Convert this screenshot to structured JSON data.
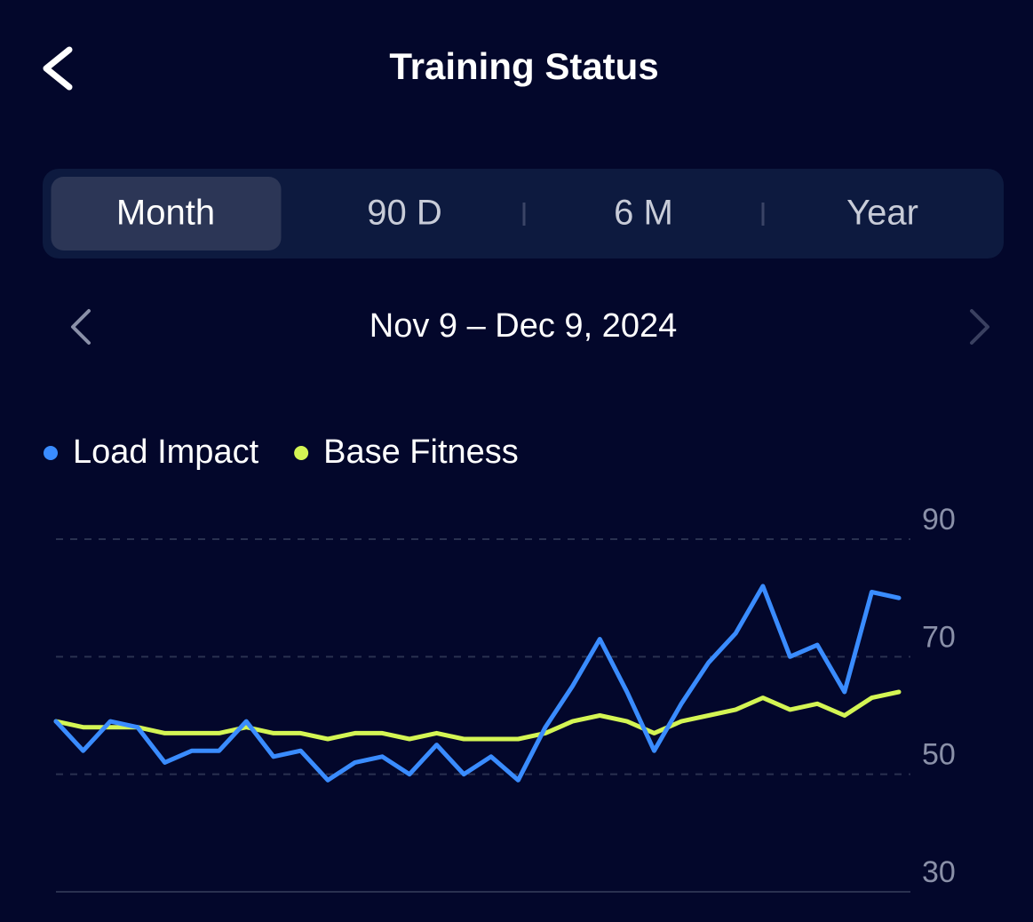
{
  "header": {
    "title": "Training Status"
  },
  "tabs": [
    {
      "label": "Month",
      "selected": true
    },
    {
      "label": "90 D",
      "selected": false
    },
    {
      "label": "6 M",
      "selected": false
    },
    {
      "label": "Year",
      "selected": false
    }
  ],
  "date_range": "Nov 9 – Dec 9, 2024",
  "chart_data": {
    "type": "line",
    "legend": "top-left",
    "grid": true,
    "ylim": [
      30,
      90
    ],
    "yticks": [
      30,
      50,
      70,
      90
    ],
    "series": [
      {
        "name": "Load Impact",
        "color": "#3a8cff",
        "values": [
          59,
          54,
          59,
          58,
          52,
          54,
          54,
          59,
          53,
          54,
          49,
          52,
          53,
          50,
          55,
          50,
          53,
          49,
          58,
          65,
          73,
          64,
          54,
          62,
          69,
          74,
          82,
          70,
          72,
          64,
          81,
          80
        ]
      },
      {
        "name": "Base Fitness",
        "color": "#d4f554",
        "values": [
          59,
          58,
          58,
          58,
          57,
          57,
          57,
          58,
          57,
          57,
          56,
          57,
          57,
          56,
          57,
          56,
          56,
          56,
          57,
          59,
          60,
          59,
          57,
          59,
          60,
          61,
          63,
          61,
          62,
          60,
          63,
          64
        ]
      }
    ]
  }
}
